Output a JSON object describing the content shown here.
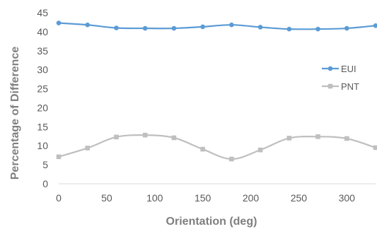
{
  "chart_data": {
    "type": "line",
    "title": "",
    "xlabel": "Orientation (deg)",
    "ylabel": "Percentage of Difference",
    "xlim": [
      0,
      330
    ],
    "ylim": [
      0,
      45
    ],
    "x_ticks": [
      "0",
      "50",
      "100",
      "150",
      "200",
      "250",
      "300"
    ],
    "y_ticks": [
      "0",
      "5",
      "10",
      "15",
      "20",
      "25",
      "30",
      "35",
      "40",
      "45"
    ],
    "x": [
      0,
      30,
      60,
      90,
      120,
      150,
      180,
      210,
      240,
      270,
      300,
      330
    ],
    "grid": false,
    "legend_position": "right",
    "series": [
      {
        "name": "EUI",
        "color": "#5b9bd5",
        "marker": "circle",
        "values": [
          42.3,
          41.8,
          41.0,
          40.9,
          40.9,
          41.3,
          41.8,
          41.2,
          40.7,
          40.7,
          40.9,
          41.6
        ]
      },
      {
        "name": "PNT",
        "color": "#bfbfbf",
        "marker": "square",
        "values": [
          7.1,
          9.4,
          12.3,
          12.8,
          12.1,
          9.1,
          6.5,
          8.9,
          12.0,
          12.4,
          11.9,
          9.5
        ]
      }
    ]
  }
}
